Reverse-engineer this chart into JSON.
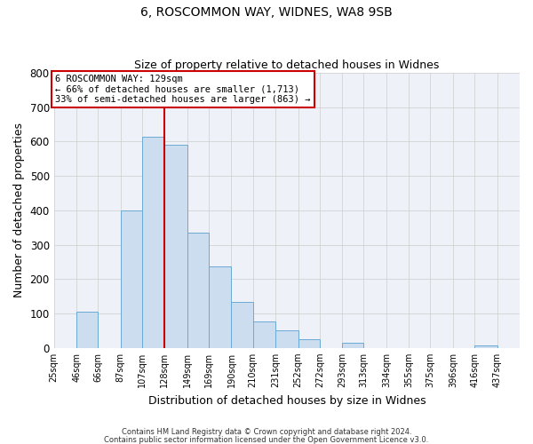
{
  "title": "6, ROSCOMMON WAY, WIDNES, WA8 9SB",
  "subtitle": "Size of property relative to detached houses in Widnes",
  "xlabel": "Distribution of detached houses by size in Widnes",
  "ylabel": "Number of detached properties",
  "bar_color": "#ccddf0",
  "bar_edge_color": "#6aaad4",
  "background_color": "#ffffff",
  "axes_bg_color": "#eef2f8",
  "grid_color": "#cccccc",
  "bin_labels": [
    "25sqm",
    "46sqm",
    "66sqm",
    "87sqm",
    "107sqm",
    "128sqm",
    "149sqm",
    "169sqm",
    "190sqm",
    "210sqm",
    "231sqm",
    "252sqm",
    "272sqm",
    "293sqm",
    "313sqm",
    "334sqm",
    "355sqm",
    "375sqm",
    "396sqm",
    "416sqm",
    "437sqm"
  ],
  "bin_edges": [
    25,
    46,
    66,
    87,
    107,
    128,
    149,
    169,
    190,
    210,
    231,
    252,
    272,
    293,
    313,
    334,
    355,
    375,
    396,
    416,
    437
  ],
  "bar_heights": [
    0,
    105,
    0,
    400,
    615,
    590,
    335,
    237,
    135,
    77,
    50,
    25,
    0,
    15,
    0,
    0,
    0,
    0,
    0,
    8,
    0
  ],
  "ylim": [
    0,
    800
  ],
  "yticks": [
    0,
    100,
    200,
    300,
    400,
    500,
    600,
    700,
    800
  ],
  "vline_x": 128,
  "vline_color": "#cc0000",
  "annotation_title": "6 ROSCOMMON WAY: 129sqm",
  "annotation_line1": "← 66% of detached houses are smaller (1,713)",
  "annotation_line2": "33% of semi-detached houses are larger (863) →",
  "annotation_box_color": "#ffffff",
  "annotation_box_edge": "#cc0000",
  "footer1": "Contains HM Land Registry data © Crown copyright and database right 2024.",
  "footer2": "Contains public sector information licensed under the Open Government Licence v3.0."
}
